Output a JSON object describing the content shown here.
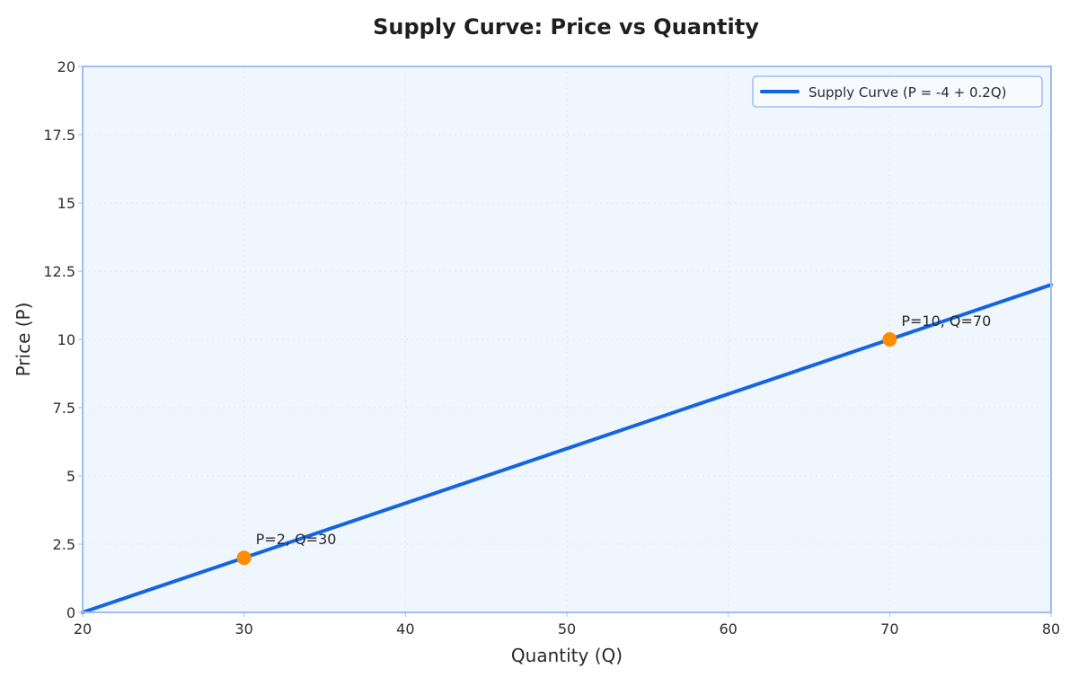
{
  "chart_data": {
    "type": "line",
    "title": "Supply Curve: Price vs Quantity",
    "xlabel": "Quantity (Q)",
    "ylabel": "Price (P)",
    "xlim": [
      20,
      80
    ],
    "ylim": [
      0,
      20
    ],
    "xticks": [
      20,
      30,
      40,
      50,
      60,
      70,
      80
    ],
    "xtick_labels": [
      "20",
      "30",
      "40",
      "50",
      "60",
      "70",
      "80"
    ],
    "yticks": [
      0,
      2.5,
      5,
      7.5,
      10,
      12.5,
      15,
      17.5,
      20
    ],
    "ytick_labels": [
      "0",
      "2.5",
      "5",
      "7.5",
      "10",
      "12.5",
      "15",
      "17.5",
      "20"
    ],
    "grid": true,
    "legend_position": "top-right",
    "series": [
      {
        "name": "Supply Curve (P = -4 + 0.2Q)",
        "x": [
          20,
          80
        ],
        "y": [
          0,
          12
        ],
        "color": "#1565e0"
      }
    ],
    "highlight_points": [
      {
        "x": 30,
        "y": 2,
        "label": "P=2, Q=30",
        "color": "#ff8c00"
      },
      {
        "x": 70,
        "y": 10,
        "label": "P=10, Q=70",
        "color": "#ff8c00"
      }
    ],
    "colors": {
      "plot_background": "#f0f6fd",
      "plot_border": "#9dbff2",
      "grid": "#dfe7f3"
    }
  }
}
